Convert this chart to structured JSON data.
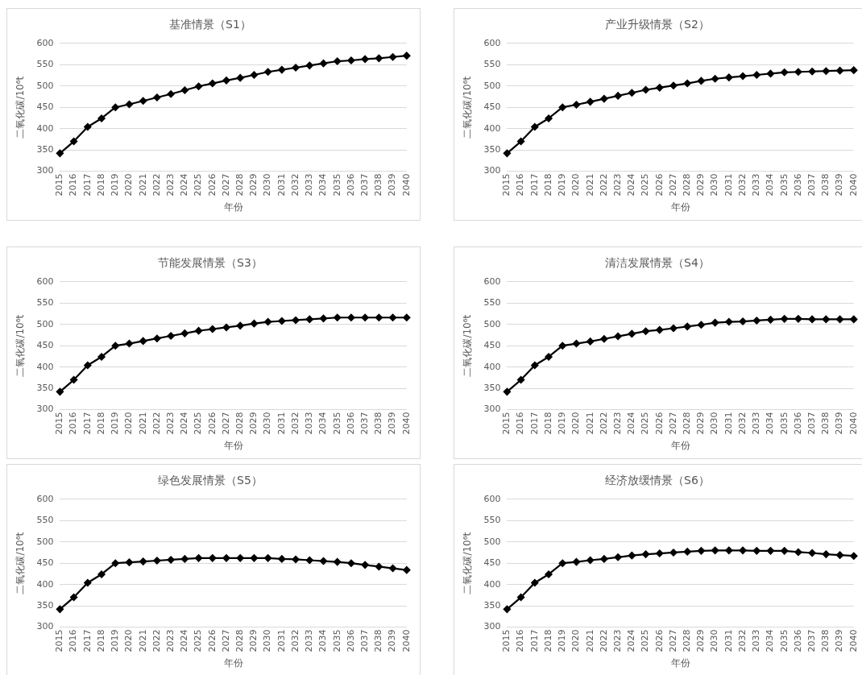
{
  "chart_data": [
    {
      "type": "line",
      "title": "基准情景（S1）",
      "xlabel": "年份",
      "ylabel": "二氧化碳/10⁶t",
      "categories": [
        "2015",
        "2016",
        "2017",
        "2018",
        "2019",
        "2020",
        "2021",
        "2022",
        "2023",
        "2024",
        "2025",
        "2026",
        "2027",
        "2028",
        "2029",
        "2030",
        "2031",
        "2032",
        "2033",
        "2034",
        "2035",
        "2036",
        "2037",
        "2038",
        "2039",
        "2040"
      ],
      "ylim": [
        300,
        600
      ],
      "yticks": [
        300,
        350,
        400,
        450,
        500,
        550,
        600
      ],
      "grid": "y",
      "legend": false,
      "marker": "diamond",
      "line_style": "solid",
      "series": [
        {
          "color": "#000000",
          "values": [
            342,
            370,
            404,
            424,
            450,
            457,
            465,
            473,
            481,
            490,
            499,
            506,
            513,
            519,
            526,
            533,
            538,
            543,
            548,
            553,
            558,
            560,
            563,
            565,
            568,
            571
          ]
        }
      ]
    },
    {
      "type": "line",
      "title": "产业升级情景（S2）",
      "xlabel": "年份",
      "ylabel": "二氧化碳/10⁶t",
      "categories": [
        "2015",
        "2016",
        "2017",
        "2018",
        "2019",
        "2020",
        "2021",
        "2022",
        "2023",
        "2024",
        "2025",
        "2026",
        "2027",
        "2028",
        "2029",
        "2030",
        "2031",
        "2032",
        "2033",
        "2034",
        "2035",
        "2036",
        "2037",
        "2038",
        "2039",
        "2040"
      ],
      "ylim": [
        300,
        600
      ],
      "yticks": [
        300,
        350,
        400,
        450,
        500,
        550,
        600
      ],
      "grid": "y",
      "legend": false,
      "marker": "diamond",
      "line_style": "solid",
      "series": [
        {
          "color": "#000000",
          "values": [
            342,
            370,
            404,
            424,
            450,
            456,
            463,
            470,
            477,
            484,
            491,
            496,
            501,
            506,
            512,
            517,
            520,
            523,
            526,
            529,
            532,
            533,
            534,
            535,
            536,
            537
          ]
        }
      ]
    },
    {
      "type": "line",
      "title": "节能发展情景（S3）",
      "xlabel": "年份",
      "ylabel": "二氧化碳/10⁶t",
      "categories": [
        "2015",
        "2016",
        "2017",
        "2018",
        "2019",
        "2020",
        "2021",
        "2022",
        "2023",
        "2024",
        "2025",
        "2026",
        "2027",
        "2028",
        "2029",
        "2030",
        "2031",
        "2032",
        "2033",
        "2034",
        "2035",
        "2036",
        "2037",
        "2038",
        "2039",
        "2040"
      ],
      "ylim": [
        300,
        600
      ],
      "yticks": [
        300,
        350,
        400,
        450,
        500,
        550,
        600
      ],
      "grid": "y",
      "legend": false,
      "marker": "diamond",
      "line_style": "solid",
      "series": [
        {
          "color": "#000000",
          "values": [
            342,
            370,
            404,
            424,
            450,
            455,
            461,
            467,
            473,
            479,
            485,
            489,
            493,
            497,
            502,
            506,
            508,
            510,
            512,
            514,
            516,
            516,
            516,
            516,
            516,
            516
          ]
        }
      ]
    },
    {
      "type": "line",
      "title": "清洁发展情景（S4）",
      "xlabel": "年份",
      "ylabel": "二氧化碳/10⁶t",
      "categories": [
        "2015",
        "2016",
        "2017",
        "2018",
        "2019",
        "2020",
        "2021",
        "2022",
        "2023",
        "2024",
        "2025",
        "2026",
        "2027",
        "2028",
        "2029",
        "2030",
        "2031",
        "2032",
        "2033",
        "2034",
        "2035",
        "2036",
        "2037",
        "2038",
        "2039",
        "2040"
      ],
      "ylim": [
        300,
        600
      ],
      "yticks": [
        300,
        350,
        400,
        450,
        500,
        550,
        600
      ],
      "grid": "y",
      "legend": false,
      "marker": "diamond",
      "line_style": "solid",
      "series": [
        {
          "color": "#000000",
          "values": [
            342,
            370,
            404,
            424,
            450,
            455,
            460,
            466,
            472,
            478,
            484,
            487,
            491,
            495,
            499,
            504,
            506,
            507,
            509,
            511,
            513,
            513,
            512,
            512,
            512,
            512
          ]
        }
      ]
    },
    {
      "type": "line",
      "title": "绿色发展情景（S5）",
      "xlabel": "年份",
      "ylabel": "二氧化碳/10⁶t",
      "categories": [
        "2015",
        "2016",
        "2017",
        "2018",
        "2019",
        "2020",
        "2021",
        "2022",
        "2023",
        "2024",
        "2025",
        "2026",
        "2027",
        "2028",
        "2029",
        "2030",
        "2031",
        "2032",
        "2033",
        "2034",
        "2035",
        "2036",
        "2037",
        "2038",
        "2039",
        "2040"
      ],
      "ylim": [
        300,
        600
      ],
      "yticks": [
        300,
        350,
        400,
        450,
        500,
        550,
        600
      ],
      "grid": "y",
      "legend": false,
      "marker": "diamond",
      "line_style": "solid",
      "series": [
        {
          "color": "#000000",
          "values": [
            342,
            370,
            404,
            424,
            450,
            452,
            454,
            456,
            458,
            460,
            462,
            462,
            462,
            462,
            462,
            462,
            460,
            459,
            457,
            455,
            453,
            450,
            446,
            442,
            438,
            434
          ]
        }
      ]
    },
    {
      "type": "line",
      "title": "经济放缓情景（S6）",
      "xlabel": "年份",
      "ylabel": "二氧化碳/10⁶t",
      "categories": [
        "2015",
        "2016",
        "2017",
        "2018",
        "2019",
        "2020",
        "2021",
        "2022",
        "2023",
        "2024",
        "2025",
        "2026",
        "2027",
        "2028",
        "2029",
        "2030",
        "2031",
        "2032",
        "2033",
        "2034",
        "2035",
        "2036",
        "2037",
        "2038",
        "2039",
        "2040"
      ],
      "ylim": [
        300,
        600
      ],
      "yticks": [
        300,
        350,
        400,
        450,
        500,
        550,
        600
      ],
      "grid": "y",
      "legend": false,
      "marker": "diamond",
      "line_style": "solid",
      "series": [
        {
          "color": "#000000",
          "values": [
            342,
            370,
            404,
            424,
            450,
            453,
            457,
            460,
            464,
            468,
            471,
            473,
            475,
            477,
            479,
            480,
            480,
            480,
            479,
            479,
            479,
            476,
            474,
            471,
            469,
            467
          ]
        }
      ]
    }
  ]
}
